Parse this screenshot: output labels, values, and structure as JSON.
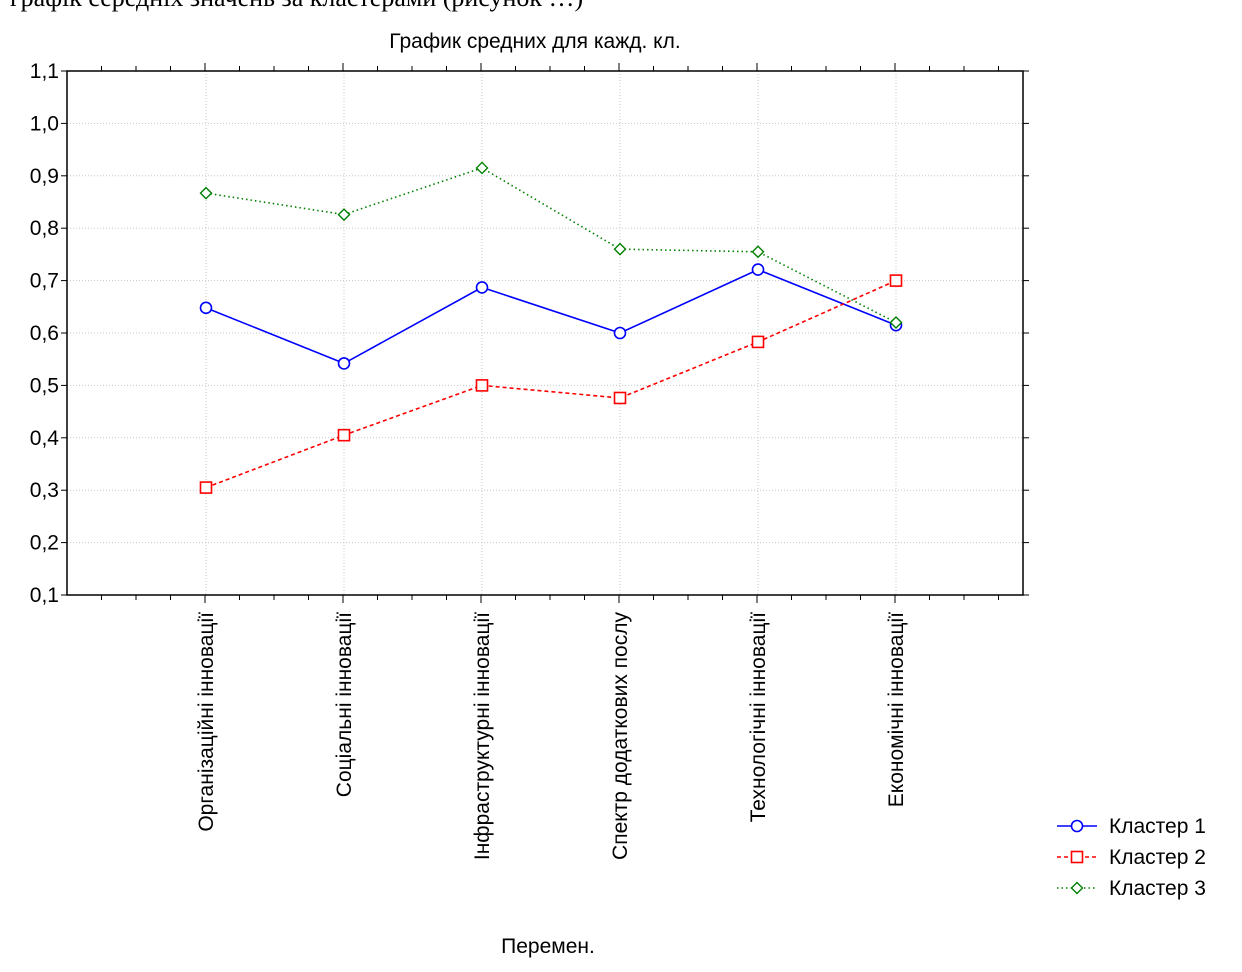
{
  "caption_fragment": "графік середніх значень за кластерами (рисунок …)",
  "chart_data": {
    "type": "line",
    "title": "График средних для кажд. кл.",
    "xlabel": "Перемен.",
    "ylabel": "",
    "ylim": [
      0.1,
      1.1
    ],
    "yticks": [
      "0,1",
      "0,2",
      "0,3",
      "0,4",
      "0,5",
      "0,6",
      "0,7",
      "0,8",
      "0,9",
      "1,0",
      "1,1"
    ],
    "categories": [
      "Організаційні інновації",
      "Соціальні інновації",
      "Інфраструктурні інновації",
      "Спектр додаткових послу",
      "Технологічні інновації",
      "Економічні інновації"
    ],
    "grid": true,
    "legend_position": "bottom-right",
    "series": [
      {
        "name": "Кластер  1",
        "color": "#0000ff",
        "marker": "circle",
        "line": "solid",
        "values": [
          0.648,
          0.542,
          0.687,
          0.6,
          0.721,
          0.615
        ]
      },
      {
        "name": "Кластер  2",
        "color": "#ff0000",
        "marker": "square",
        "line": "dashed",
        "values": [
          0.305,
          0.405,
          0.5,
          0.476,
          0.583,
          0.7
        ]
      },
      {
        "name": "Кластер  3",
        "color": "#008000",
        "marker": "diamond",
        "line": "dotted",
        "values": [
          0.867,
          0.826,
          0.915,
          0.76,
          0.755,
          0.62
        ]
      }
    ]
  }
}
